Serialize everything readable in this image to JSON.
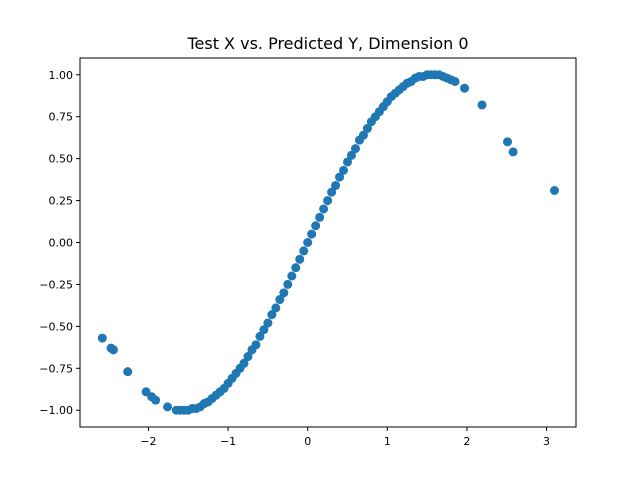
{
  "chart_data": {
    "type": "scatter",
    "title": "Test X vs. Predicted Y, Dimension 0",
    "xlabel": "",
    "ylabel": "",
    "xlim": [
      -2.86,
      3.37
    ],
    "ylim": [
      -1.1,
      1.1
    ],
    "grid": false,
    "color": "#1f77b4",
    "xticks": [
      -2,
      -1,
      0,
      1,
      2,
      3
    ],
    "xtick_labels": [
      "−2",
      "−1",
      "0",
      "1",
      "2",
      "3"
    ],
    "yticks": [
      -1.0,
      -0.75,
      -0.5,
      -0.25,
      0.0,
      0.25,
      0.5,
      0.75,
      1.0
    ],
    "ytick_labels": [
      "−1.00",
      "−0.75",
      "−0.50",
      "−0.25",
      "0.00",
      "0.25",
      "0.50",
      "0.75",
      "1.00"
    ],
    "x": [
      -2.58,
      -2.47,
      -2.44,
      -2.26,
      -2.03,
      -1.96,
      -1.91,
      -1.76,
      -1.65,
      -1.6,
      -1.55,
      -1.5,
      -1.45,
      -1.4,
      -1.35,
      -1.3,
      -1.25,
      -1.2,
      -1.15,
      -1.1,
      -1.05,
      -1.0,
      -0.95,
      -0.9,
      -0.85,
      -0.8,
      -0.75,
      -0.7,
      -0.65,
      -0.6,
      -0.55,
      -0.5,
      -0.45,
      -0.4,
      -0.35,
      -0.3,
      -0.25,
      -0.2,
      -0.15,
      -0.1,
      -0.05,
      0.0,
      0.05,
      0.1,
      0.15,
      0.2,
      0.25,
      0.3,
      0.35,
      0.4,
      0.45,
      0.5,
      0.55,
      0.6,
      0.65,
      0.7,
      0.75,
      0.8,
      0.85,
      0.9,
      0.95,
      1.0,
      1.05,
      1.1,
      1.15,
      1.2,
      1.25,
      1.3,
      1.35,
      1.4,
      1.45,
      1.5,
      1.55,
      1.6,
      1.65,
      1.7,
      1.75,
      1.8,
      1.85,
      1.97,
      2.19,
      2.51,
      2.58,
      3.1
    ],
    "y": [
      -0.57,
      -0.63,
      -0.64,
      -0.77,
      -0.89,
      -0.92,
      -0.94,
      -0.98,
      -1.0,
      -1.0,
      -1.0,
      -1.0,
      -0.99,
      -0.99,
      -0.98,
      -0.96,
      -0.95,
      -0.93,
      -0.91,
      -0.89,
      -0.87,
      -0.84,
      -0.81,
      -0.78,
      -0.75,
      -0.72,
      -0.68,
      -0.64,
      -0.61,
      -0.56,
      -0.52,
      -0.48,
      -0.43,
      -0.39,
      -0.34,
      -0.3,
      -0.25,
      -0.2,
      -0.15,
      -0.1,
      -0.05,
      0.0,
      0.05,
      0.1,
      0.15,
      0.2,
      0.25,
      0.3,
      0.34,
      0.39,
      0.43,
      0.48,
      0.52,
      0.56,
      0.61,
      0.64,
      0.68,
      0.72,
      0.75,
      0.78,
      0.81,
      0.84,
      0.87,
      0.89,
      0.91,
      0.93,
      0.95,
      0.96,
      0.98,
      0.99,
      0.99,
      1.0,
      1.0,
      1.0,
      1.0,
      0.99,
      0.98,
      0.97,
      0.96,
      0.92,
      0.82,
      0.6,
      0.54,
      0.31
    ]
  }
}
